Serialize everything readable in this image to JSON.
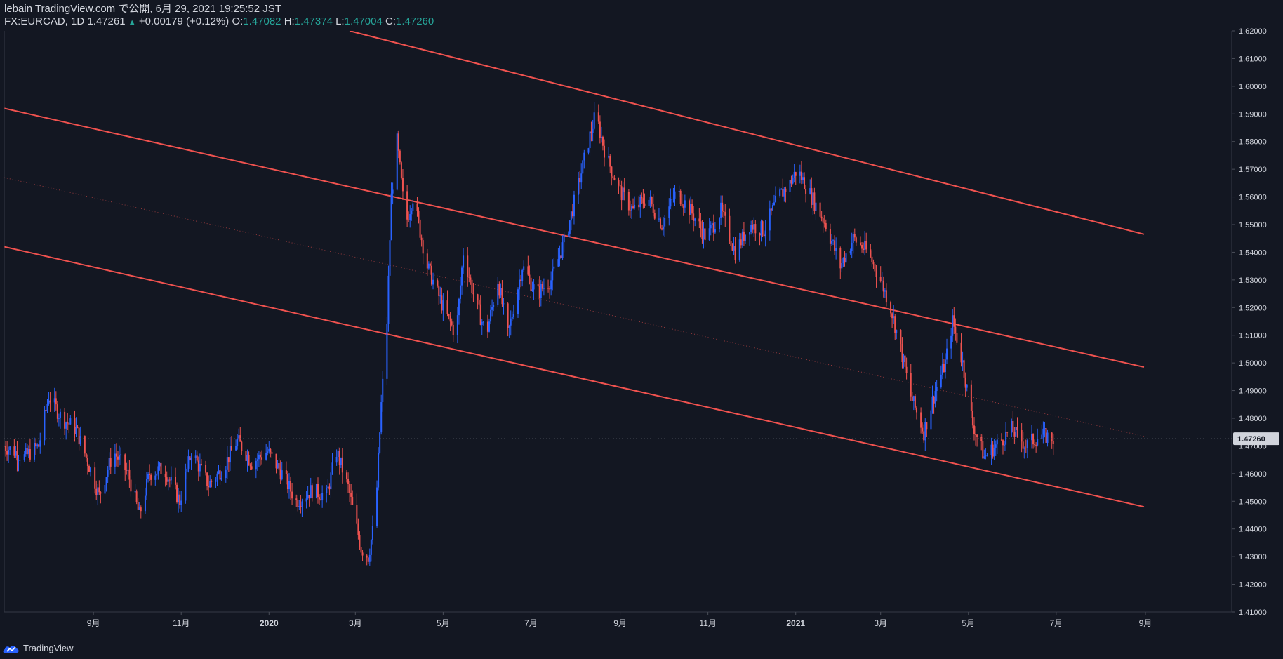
{
  "header": {
    "publish_line": "lebain TradingView.com で公開, 6月 29, 2021 19:25:52 JST",
    "symbol": "FX:EURCAD, 1D",
    "last": "1.47261",
    "change": "+0.00179 (+0.12%)",
    "open_label": "O:",
    "open": "1.47082",
    "high_label": "H:",
    "high": "1.47374",
    "low_label": "L:",
    "low": "1.47004",
    "close_label": "C:",
    "close": "1.47260"
  },
  "footer": {
    "brand": "TradingView"
  },
  "colors": {
    "background": "#131722",
    "up": "#2962ff",
    "down": "#ef5350",
    "trendline": "#f0524f",
    "axis_text": "#d1d4dc",
    "price_badge": "#d1d4dc"
  },
  "chart_data": {
    "type": "candlestick",
    "symbol": "FX:EURCAD",
    "interval": "1D",
    "ylim": [
      1.41,
      1.62
    ],
    "y_ticks": [
      "1.41000",
      "1.42000",
      "1.43000",
      "1.44000",
      "1.45000",
      "1.46000",
      "1.47000",
      "1.48000",
      "1.49000",
      "1.50000",
      "1.51000",
      "1.52000",
      "1.53000",
      "1.54000",
      "1.55000",
      "1.56000",
      "1.57000",
      "1.58000",
      "1.59000",
      "1.60000",
      "1.61000",
      "1.62000"
    ],
    "x_ticks": [
      {
        "label": "9月",
        "date": "2019-09-01"
      },
      {
        "label": "11月",
        "date": "2019-11-01"
      },
      {
        "label": "2020",
        "date": "2020-01-01"
      },
      {
        "label": "3月",
        "date": "2020-03-01"
      },
      {
        "label": "5月",
        "date": "2020-05-01"
      },
      {
        "label": "7月",
        "date": "2020-07-01"
      },
      {
        "label": "9月",
        "date": "2020-09-01"
      },
      {
        "label": "11月",
        "date": "2020-11-01"
      },
      {
        "label": "2021",
        "date": "2021-01-01"
      },
      {
        "label": "3月",
        "date": "2021-03-01"
      },
      {
        "label": "5月",
        "date": "2021-05-01"
      },
      {
        "label": "7月",
        "date": "2021-07-01"
      },
      {
        "label": "9月",
        "date": "2021-09-01"
      }
    ],
    "current_price": "1.47260",
    "close_path": [
      [
        "2019-07-01",
        1.47
      ],
      [
        "2019-07-15",
        1.466
      ],
      [
        "2019-07-25",
        1.47
      ],
      [
        "2019-08-01",
        1.488
      ],
      [
        "2019-08-10",
        1.48
      ],
      [
        "2019-08-20",
        1.476
      ],
      [
        "2019-08-31",
        1.46
      ],
      [
        "2019-09-05",
        1.452
      ],
      [
        "2019-09-15",
        1.468
      ],
      [
        "2019-09-25",
        1.46
      ],
      [
        "2019-10-03",
        1.445
      ],
      [
        "2019-10-10",
        1.46
      ],
      [
        "2019-10-20",
        1.462
      ],
      [
        "2019-10-31",
        1.45
      ],
      [
        "2019-11-08",
        1.468
      ],
      [
        "2019-11-20",
        1.456
      ],
      [
        "2019-11-30",
        1.462
      ],
      [
        "2019-12-10",
        1.472
      ],
      [
        "2019-12-20",
        1.464
      ],
      [
        "2019-12-31",
        1.468
      ],
      [
        "2020-01-10",
        1.46
      ],
      [
        "2020-01-20",
        1.45
      ],
      [
        "2020-01-31",
        1.454
      ],
      [
        "2020-02-10",
        1.452
      ],
      [
        "2020-02-17",
        1.468
      ],
      [
        "2020-02-25",
        1.455
      ],
      [
        "2020-03-05",
        1.433
      ],
      [
        "2020-03-10",
        1.43
      ],
      [
        "2020-03-15",
        1.445
      ],
      [
        "2020-03-19",
        1.485
      ],
      [
        "2020-03-23",
        1.515
      ],
      [
        "2020-03-26",
        1.56
      ],
      [
        "2020-03-30",
        1.58
      ],
      [
        "2020-04-05",
        1.55
      ],
      [
        "2020-04-10",
        1.56
      ],
      [
        "2020-04-20",
        1.535
      ],
      [
        "2020-05-01",
        1.52
      ],
      [
        "2020-05-10",
        1.51
      ],
      [
        "2020-05-15",
        1.54
      ],
      [
        "2020-05-22",
        1.525
      ],
      [
        "2020-05-31",
        1.51
      ],
      [
        "2020-06-08",
        1.53
      ],
      [
        "2020-06-15",
        1.51
      ],
      [
        "2020-06-25",
        1.535
      ],
      [
        "2020-07-05",
        1.525
      ],
      [
        "2020-07-15",
        1.53
      ],
      [
        "2020-07-25",
        1.545
      ],
      [
        "2020-08-01",
        1.56
      ],
      [
        "2020-08-10",
        1.58
      ],
      [
        "2020-08-15",
        1.59
      ],
      [
        "2020-08-22",
        1.575
      ],
      [
        "2020-09-01",
        1.562
      ],
      [
        "2020-09-10",
        1.555
      ],
      [
        "2020-09-20",
        1.56
      ],
      [
        "2020-09-30",
        1.55
      ],
      [
        "2020-10-10",
        1.562
      ],
      [
        "2020-10-20",
        1.555
      ],
      [
        "2020-10-31",
        1.545
      ],
      [
        "2020-11-10",
        1.555
      ],
      [
        "2020-11-20",
        1.54
      ],
      [
        "2020-11-30",
        1.55
      ],
      [
        "2020-12-10",
        1.548
      ],
      [
        "2020-12-20",
        1.56
      ],
      [
        "2020-12-28",
        1.565
      ],
      [
        "2021-01-02",
        1.57
      ],
      [
        "2021-01-12",
        1.56
      ],
      [
        "2021-01-22",
        1.55
      ],
      [
        "2021-02-01",
        1.535
      ],
      [
        "2021-02-10",
        1.545
      ],
      [
        "2021-02-20",
        1.54
      ],
      [
        "2021-03-01",
        1.53
      ],
      [
        "2021-03-08",
        1.52
      ],
      [
        "2021-03-15",
        1.505
      ],
      [
        "2021-03-22",
        1.488
      ],
      [
        "2021-03-31",
        1.475
      ],
      [
        "2021-04-08",
        1.49
      ],
      [
        "2021-04-15",
        1.5
      ],
      [
        "2021-04-20",
        1.515
      ],
      [
        "2021-04-27",
        1.5
      ],
      [
        "2021-05-04",
        1.478
      ],
      [
        "2021-05-12",
        1.466
      ],
      [
        "2021-05-20",
        1.47
      ],
      [
        "2021-05-31",
        1.476
      ],
      [
        "2021-06-10",
        1.47
      ],
      [
        "2021-06-20",
        1.474
      ],
      [
        "2021-06-29",
        1.4726
      ]
    ],
    "channel_lines": [
      {
        "name": "upper",
        "points": [
          [
            "2020-02-26",
            1.62
          ],
          [
            "2021-08-31",
            1.5465
          ]
        ]
      },
      {
        "name": "middle",
        "points": [
          [
            "2019-07-01",
            1.592
          ],
          [
            "2021-08-31",
            1.4985
          ]
        ]
      },
      {
        "name": "lower",
        "points": [
          [
            "2019-07-01",
            1.542
          ],
          [
            "2021-08-31",
            1.448
          ]
        ]
      },
      {
        "name": "median",
        "style": "dotted",
        "points": [
          [
            "2019-07-01",
            1.567
          ],
          [
            "2021-08-31",
            1.4735
          ]
        ]
      }
    ]
  }
}
